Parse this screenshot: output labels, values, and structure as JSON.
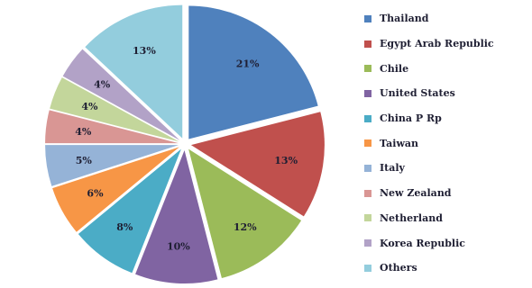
{
  "chart_data": {
    "type": "pie",
    "title": "",
    "legend_position": "right",
    "slices": [
      {
        "label": "Thailand",
        "value": 21,
        "value_label": "21%",
        "color": "#4f81bd"
      },
      {
        "label": "Egypt Arab Republic",
        "value": 13,
        "value_label": "13%",
        "color": "#c0504d"
      },
      {
        "label": "Chile",
        "value": 12,
        "value_label": "12%",
        "color": "#9bbb59"
      },
      {
        "label": "United States",
        "value": 10,
        "value_label": "10%",
        "color": "#8064a2"
      },
      {
        "label": "China P Rp",
        "value": 8,
        "value_label": "8%",
        "color": "#4bacc6"
      },
      {
        "label": "Taiwan",
        "value": 6,
        "value_label": "6%",
        "color": "#f79646"
      },
      {
        "label": "Italy",
        "value": 5,
        "value_label": "5%",
        "color": "#95b3d7"
      },
      {
        "label": "New Zealand",
        "value": 4,
        "value_label": "4%",
        "color": "#d99694"
      },
      {
        "label": "Netherland",
        "value": 4,
        "value_label": "4%",
        "color": "#c3d69b"
      },
      {
        "label": "Korea Republic",
        "value": 4,
        "value_label": "4%",
        "color": "#b2a2c7"
      },
      {
        "label": "Others",
        "value": 13,
        "value_label": "13%",
        "color": "#93cddd"
      }
    ]
  }
}
